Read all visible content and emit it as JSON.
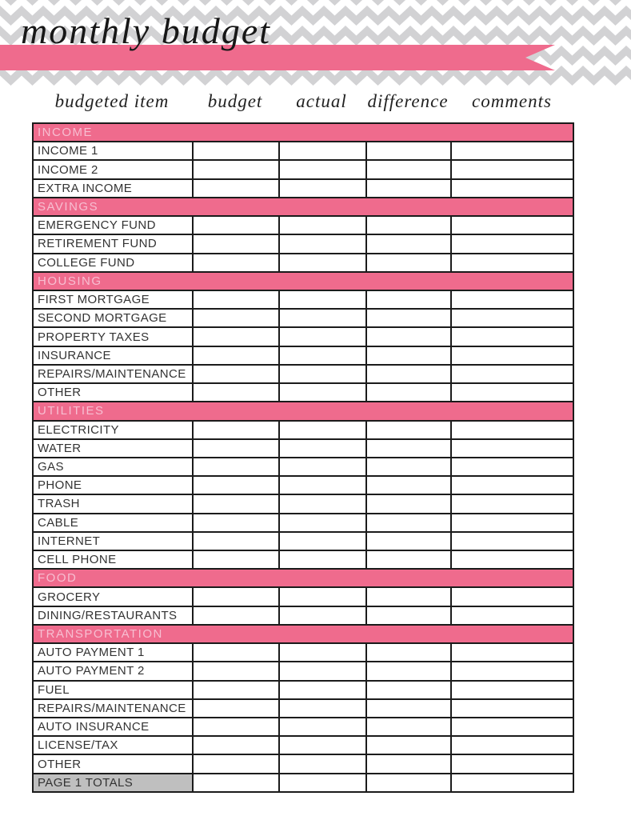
{
  "title": "monthly budget",
  "columns": [
    {
      "label": "budgeted item"
    },
    {
      "label": "budget"
    },
    {
      "label": "actual"
    },
    {
      "label": "difference"
    },
    {
      "label": "comments"
    }
  ],
  "sections": [
    {
      "name": "INCOME",
      "rows": [
        "INCOME 1",
        "INCOME 2",
        "EXTRA INCOME"
      ]
    },
    {
      "name": "SAVINGS",
      "rows": [
        "EMERGENCY FUND",
        "RETIREMENT FUND",
        "COLLEGE FUND"
      ]
    },
    {
      "name": "HOUSING",
      "rows": [
        "FIRST MORTGAGE",
        "SECOND MORTGAGE",
        "PROPERTY TAXES",
        "INSURANCE",
        "REPAIRS/MAINTENANCE",
        "OTHER"
      ]
    },
    {
      "name": "UTILITIES",
      "rows": [
        "ELECTRICITY",
        "WATER",
        "GAS",
        "PHONE",
        "TRASH",
        "CABLE",
        "INTERNET",
        "CELL PHONE"
      ]
    },
    {
      "name": "FOOD",
      "rows": [
        "GROCERY",
        "DINING/RESTAURANTS"
      ]
    },
    {
      "name": "TRANSPORTATION",
      "rows": [
        "AUTO PAYMENT 1",
        "AUTO PAYMENT 2",
        "FUEL",
        "REPAIRS/MAINTENANCE",
        "AUTO INSURANCE",
        "LICENSE/TAX",
        "OTHER"
      ]
    }
  ],
  "totals": {
    "label": "PAGE 1 TOTALS"
  },
  "empty_cell_value": "",
  "colors": {
    "accent_pink": "#EF6B8D",
    "section_text_pink": "#F7BFD2",
    "chevron_gray": "#D2D2D4",
    "totals_gray": "#BFBFBF",
    "border_black": "#1B1B1B"
  }
}
